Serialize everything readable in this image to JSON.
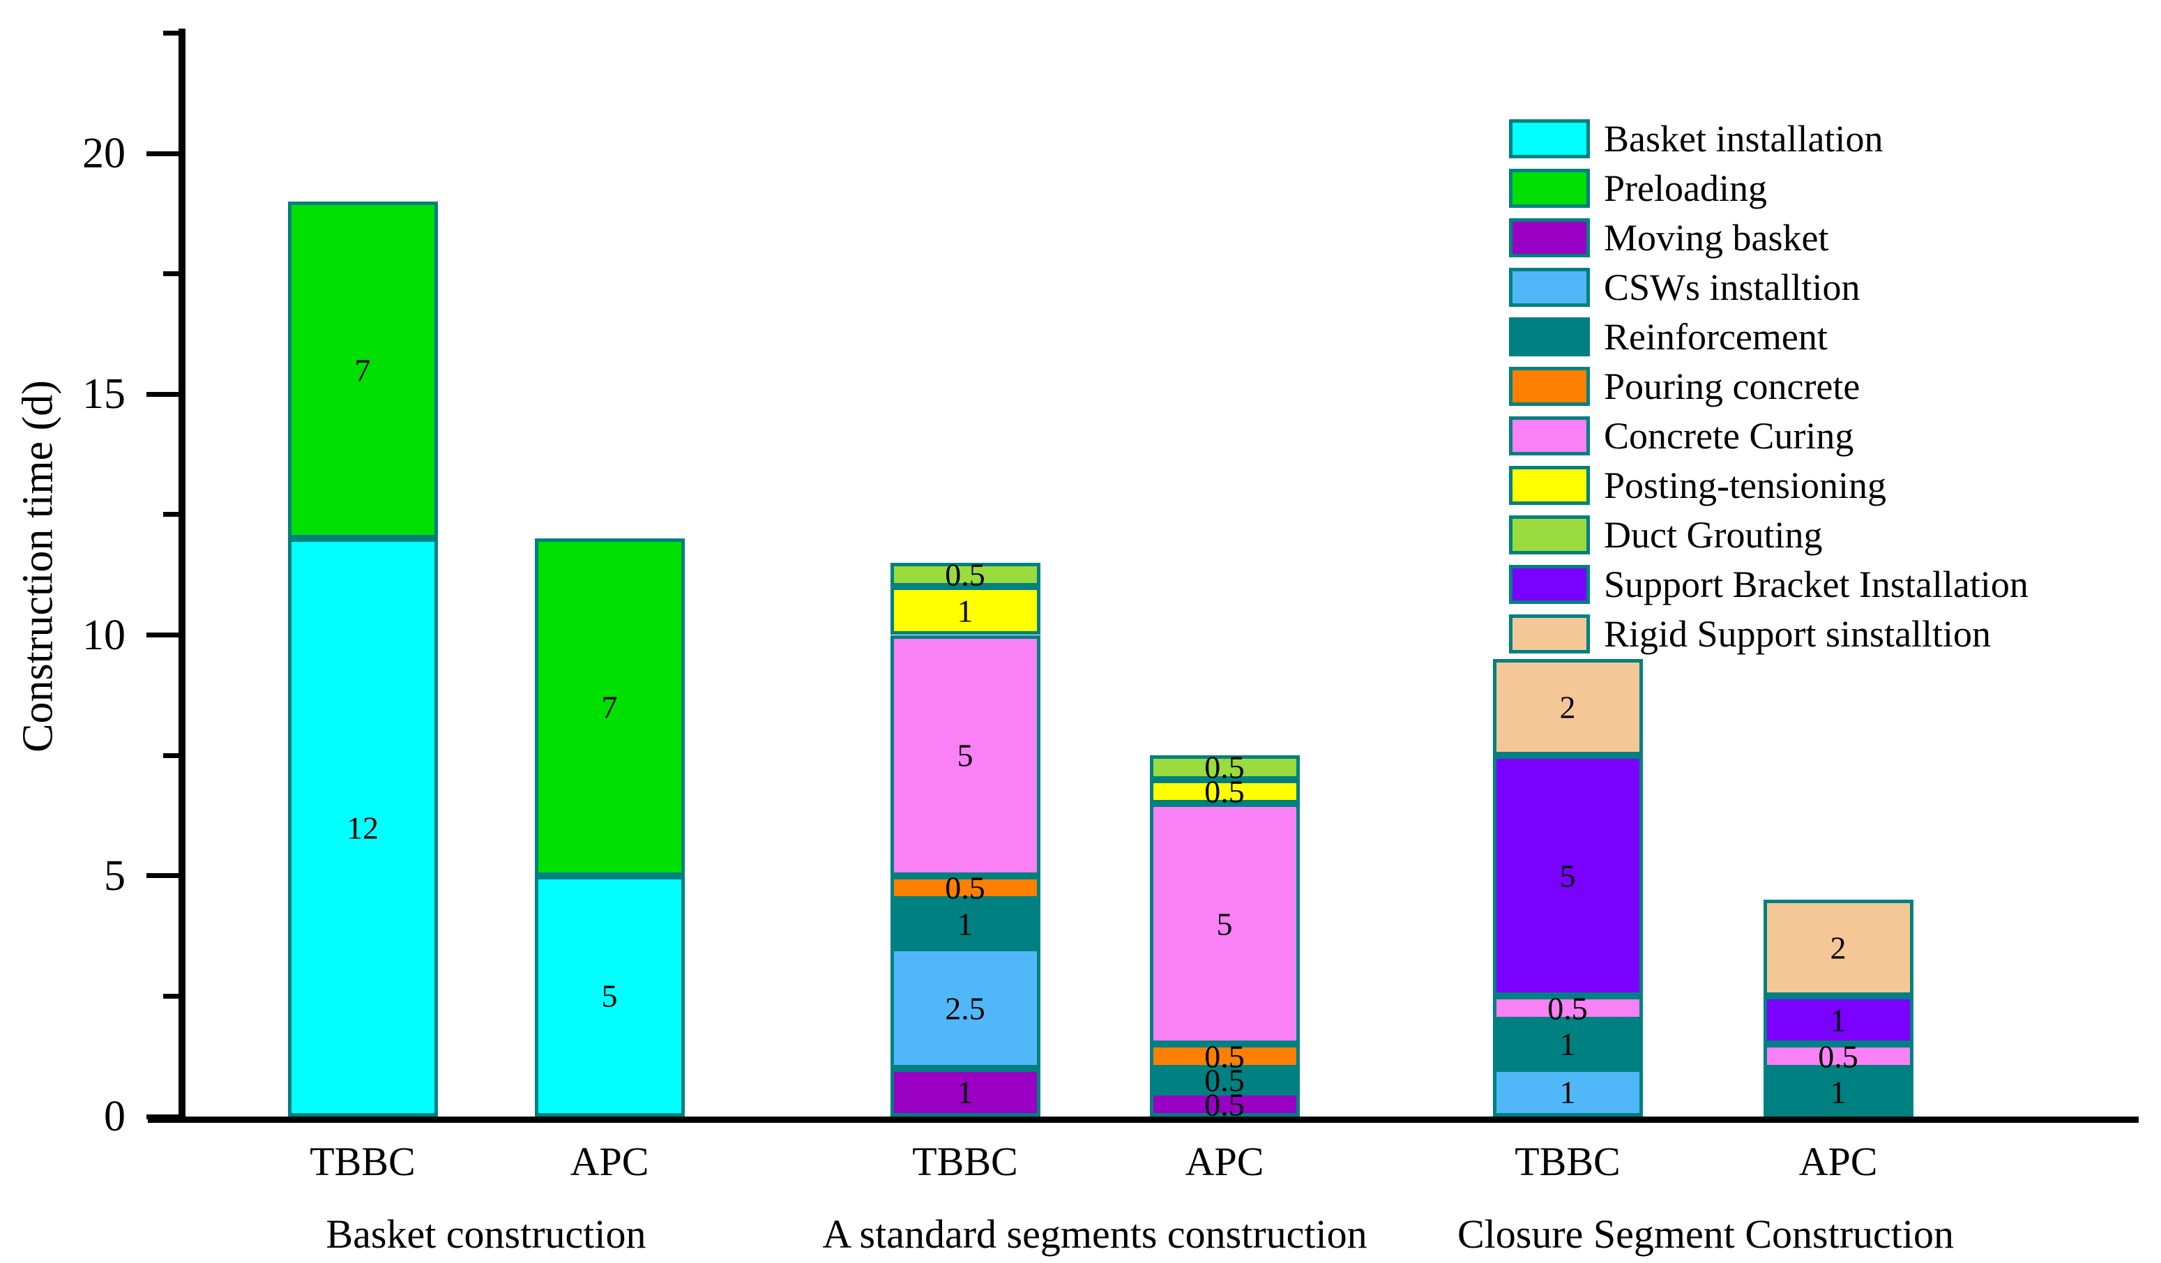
{
  "chart_data": {
    "type": "bar",
    "stacked": true,
    "title": "",
    "xlabel": "",
    "ylabel": "Construction time (d)",
    "ylim": [
      0,
      22.5
    ],
    "ytick_major": [
      0,
      5,
      10,
      15,
      20
    ],
    "ytick_minor": [
      2.5,
      7.5,
      12.5,
      17.5,
      22.5
    ],
    "grid": false,
    "legend_position": "upper right",
    "bar_border_color": "#008080",
    "axis_color": "#000000",
    "legend": [
      {
        "label": "Basket installation",
        "color": "#00FFFF"
      },
      {
        "label": "Preloading",
        "color": "#00E000"
      },
      {
        "label": "Moving basket",
        "color": "#9900C4"
      },
      {
        "label": "CSWs installtion",
        "color": "#50B8F8"
      },
      {
        "label": "Reinforcement",
        "color": "#008080"
      },
      {
        "label": "Pouring concrete",
        "color": "#FF7F00"
      },
      {
        "label": "Concrete Curing",
        "color": "#FA80F5"
      },
      {
        "label": "Posting-tensioning",
        "color": "#FFFF00"
      },
      {
        "label": "Duct Grouting",
        "color": "#9ADB3D"
      },
      {
        "label": "Support Bracket Installation",
        "color": "#7A00FF"
      },
      {
        "label": "Rigid Support sinstalltion",
        "color": "#F6C796"
      }
    ],
    "groups": [
      {
        "label": "Basket construction",
        "bars": [
          {
            "label": "TBBC",
            "segments": [
              {
                "name": "Basket installation",
                "value": 12
              },
              {
                "name": "Preloading",
                "value": 7
              }
            ]
          },
          {
            "label": "APC",
            "segments": [
              {
                "name": "Basket installation",
                "value": 5
              },
              {
                "name": "Preloading",
                "value": 7
              }
            ]
          }
        ]
      },
      {
        "label": "A standard segments construction",
        "bars": [
          {
            "label": "TBBC",
            "segments": [
              {
                "name": "Moving basket",
                "value": 1
              },
              {
                "name": "CSWs installtion",
                "value": 2.5
              },
              {
                "name": "Reinforcement",
                "value": 1
              },
              {
                "name": "Pouring concrete",
                "value": 0.5
              },
              {
                "name": "Concrete Curing",
                "value": 5
              },
              {
                "name": "Posting-tensioning",
                "value": 1
              },
              {
                "name": "Duct Grouting",
                "value": 0.5
              }
            ]
          },
          {
            "label": "APC",
            "segments": [
              {
                "name": "Moving basket",
                "value": 0.5
              },
              {
                "name": "Reinforcement",
                "value": 0.5
              },
              {
                "name": "Pouring concrete",
                "value": 0.5
              },
              {
                "name": "Concrete Curing",
                "value": 5
              },
              {
                "name": "Posting-tensioning",
                "value": 0.5
              },
              {
                "name": "Duct Grouting",
                "value": 0.5
              }
            ]
          }
        ]
      },
      {
        "label": "Closure Segment Construction",
        "bars": [
          {
            "label": "TBBC",
            "segments": [
              {
                "name": "CSWs installtion",
                "value": 1
              },
              {
                "name": "Reinforcement",
                "value": 1
              },
              {
                "name": "Concrete Curing",
                "value": 0.5
              },
              {
                "name": "Support Bracket Installation",
                "value": 5
              },
              {
                "name": "Rigid Support sinstalltion",
                "value": 2
              }
            ]
          },
          {
            "label": "APC",
            "segments": [
              {
                "name": "Reinforcement",
                "value": 1
              },
              {
                "name": "Concrete Curing",
                "value": 0.5
              },
              {
                "name": "Support Bracket Installation",
                "value": 1
              },
              {
                "name": "Rigid Support sinstalltion",
                "value": 2
              }
            ]
          }
        ]
      }
    ]
  }
}
